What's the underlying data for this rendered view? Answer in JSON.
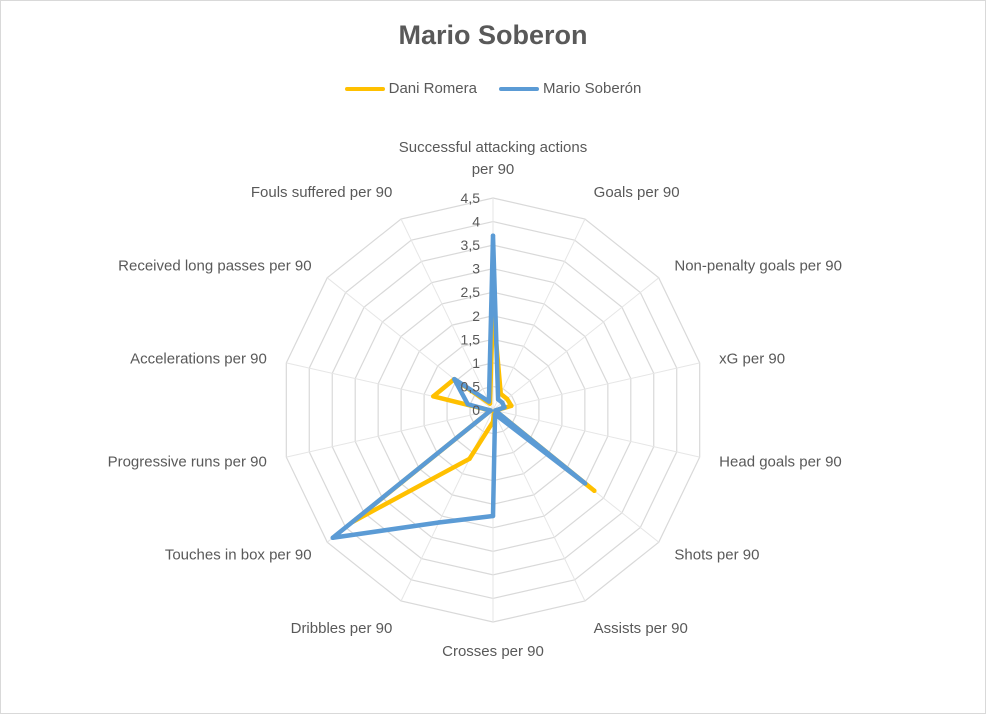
{
  "chart_data": {
    "type": "radar",
    "title": "Mario Soberon",
    "categories": [
      "Successful attacking actions per 90",
      "Goals per 90",
      "Non-penalty goals per 90",
      "xG per 90",
      "Head goals per 90",
      "Shots per 90",
      "Assists per 90",
      "Crosses per 90",
      "Dribbles per 90",
      "Touches in box per 90",
      "Progressive runs per 90",
      "Accelerations per 90",
      "Received long passes per 90",
      "Fouls suffered per 90"
    ],
    "category_lines": [
      [
        "Successful attacking actions",
        "per 90"
      ],
      [
        "Goals per 90"
      ],
      [
        "Non-penalty goals per 90"
      ],
      [
        "xG per 90"
      ],
      [
        "Head goals per 90"
      ],
      [
        "Shots per 90"
      ],
      [
        "Assists per 90"
      ],
      [
        "Crosses per 90"
      ],
      [
        "Dribbles per 90"
      ],
      [
        "Touches in box per 90"
      ],
      [
        "Progressive runs per 90"
      ],
      [
        "Accelerations per 90"
      ],
      [
        "Received long passes per 90"
      ],
      [
        "Fouls suffered per 90"
      ]
    ],
    "ticks": [
      "0",
      "0,5",
      "1",
      "1,5",
      "2",
      "2,5",
      "3",
      "3,5",
      "4",
      "4,5"
    ],
    "rmax": 4.5,
    "series": [
      {
        "name": "Dani Romera",
        "color": "#FFC000",
        "values": [
          2.2,
          0.38,
          0.38,
          0.4,
          0.05,
          2.75,
          0.05,
          0.25,
          1.15,
          3.8,
          0.05,
          1.3,
          1.05,
          0.15
        ]
      },
      {
        "name": "Mario Soberón",
        "color": "#5B9BD5",
        "values": [
          3.7,
          0.25,
          0.25,
          0.25,
          0.05,
          2.5,
          0.1,
          2.25,
          2.65,
          4.35,
          0.05,
          0.55,
          1.05,
          0.2
        ]
      }
    ],
    "legend_position": "top",
    "grid": true
  }
}
